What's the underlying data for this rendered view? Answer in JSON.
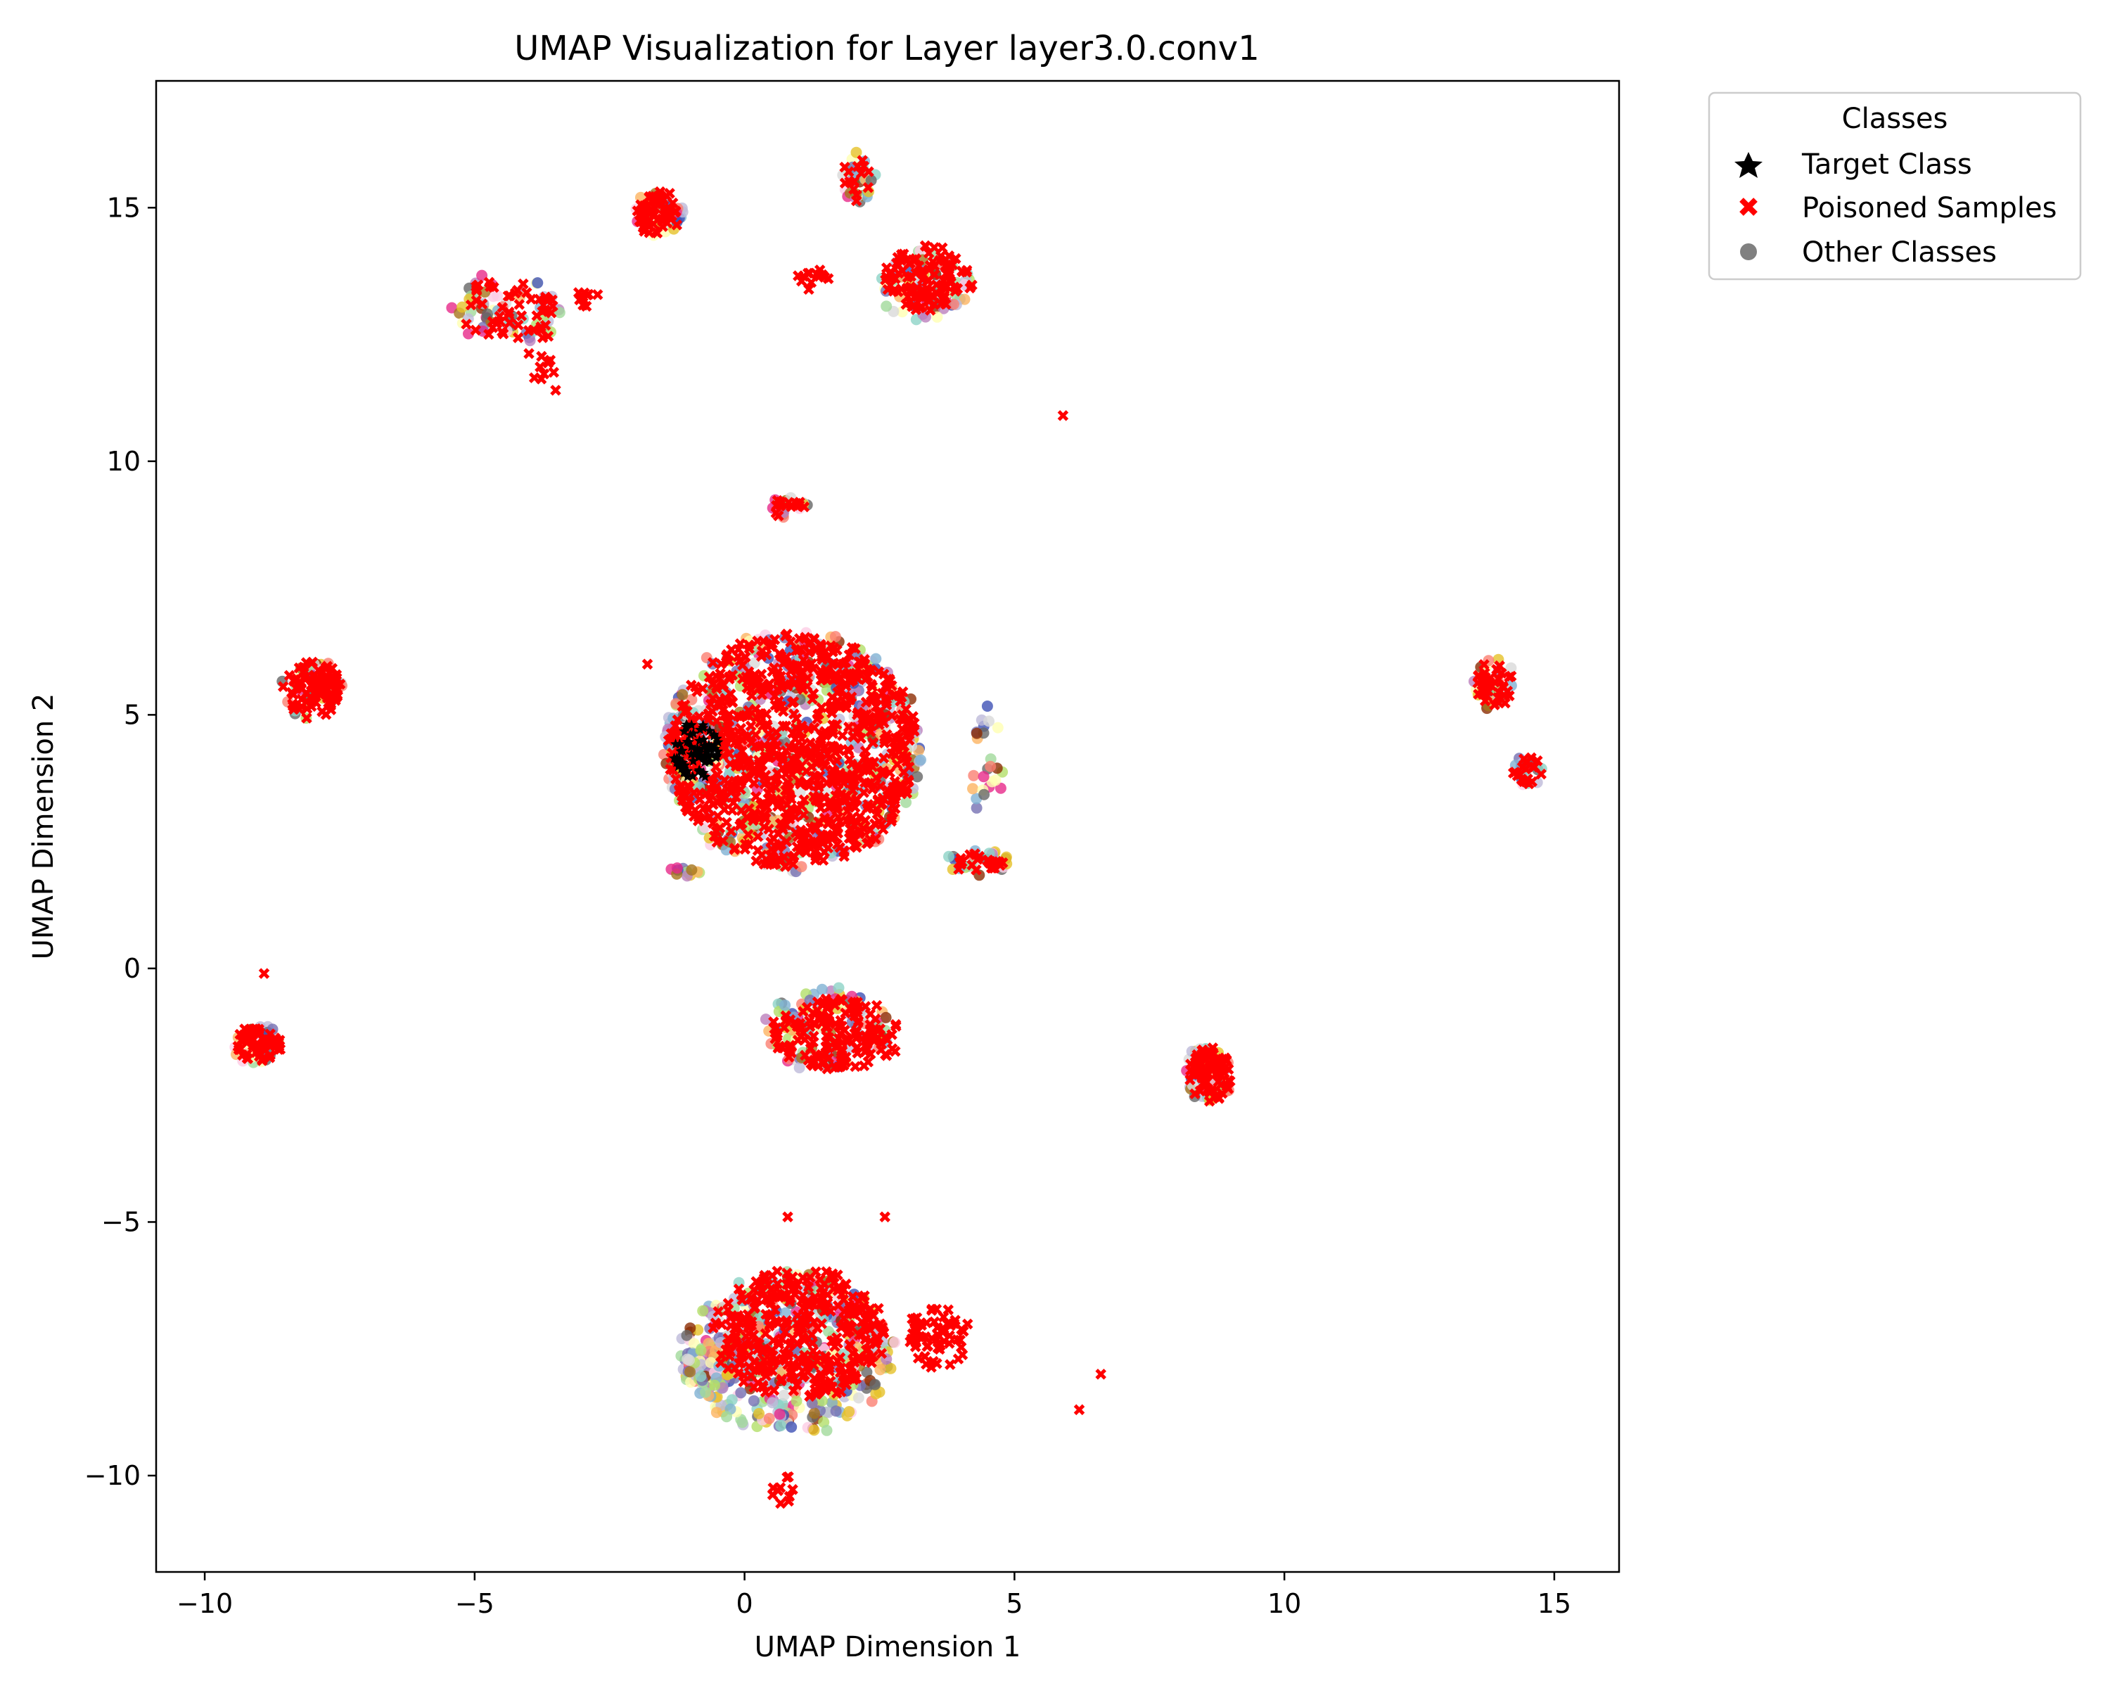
{
  "chart_data": {
    "type": "scatter",
    "title": "UMAP Visualization for Layer layer3.0.conv1",
    "xlabel": "UMAP Dimension 1",
    "ylabel": "UMAP Dimension 2",
    "xlim": [
      -10.9,
      16.2
    ],
    "ylim": [
      -11.9,
      17.5
    ],
    "x_ticks": [
      -10,
      -5,
      0,
      5,
      10,
      15
    ],
    "y_ticks": [
      -10,
      -5,
      0,
      5,
      10,
      15
    ],
    "grid": false,
    "legend": {
      "title": "Classes",
      "placement": "outside-top-right",
      "entries": [
        {
          "label": "Target Class",
          "marker": "star",
          "color": "#000000"
        },
        {
          "label": "Poisoned Samples",
          "marker": "x",
          "color": "#ff0000"
        },
        {
          "label": "Other Classes",
          "marker": "circle",
          "color": "#808080"
        }
      ]
    },
    "other_class_colors": [
      "#8dd3c7",
      "#ffffb3",
      "#bebada",
      "#fb8072",
      "#80b1d3",
      "#fdb462",
      "#b3de69",
      "#fccde5",
      "#d9d9d9",
      "#bc80bd",
      "#a6761d",
      "#e7298a",
      "#7570b3",
      "#3f51b5",
      "#666666",
      "#8c2d04",
      "#e6c229",
      "#a1d99b"
    ],
    "series": [
      {
        "name": "Other Classes",
        "clusters": [
          {
            "cx": 0.9,
            "cy": 4.3,
            "rx": 2.4,
            "ry": 2.4,
            "n": 560
          },
          {
            "cx": -4.4,
            "cy": 13.0,
            "rx": 1.0,
            "ry": 0.7,
            "n": 60
          },
          {
            "cx": -1.6,
            "cy": 14.9,
            "rx": 0.45,
            "ry": 0.45,
            "n": 40
          },
          {
            "cx": 2.1,
            "cy": 15.6,
            "rx": 0.3,
            "ry": 0.6,
            "n": 30
          },
          {
            "cx": 3.3,
            "cy": 13.5,
            "rx": 0.9,
            "ry": 0.7,
            "n": 60
          },
          {
            "cx": -8.0,
            "cy": 5.5,
            "rx": 0.6,
            "ry": 0.6,
            "n": 45
          },
          {
            "cx": -9.0,
            "cy": -1.5,
            "rx": 0.5,
            "ry": 0.4,
            "n": 35
          },
          {
            "cx": 8.6,
            "cy": -2.1,
            "rx": 0.45,
            "ry": 0.6,
            "n": 50
          },
          {
            "cx": 13.9,
            "cy": 5.6,
            "rx": 0.4,
            "ry": 0.5,
            "n": 30
          },
          {
            "cx": 14.5,
            "cy": 3.9,
            "rx": 0.3,
            "ry": 0.3,
            "n": 20
          },
          {
            "cx": 1.5,
            "cy": -1.2,
            "rx": 1.2,
            "ry": 0.8,
            "n": 100
          },
          {
            "cx": 0.8,
            "cy": -7.6,
            "rx": 2.0,
            "ry": 1.6,
            "n": 400
          },
          {
            "cx": -0.6,
            "cy": -7.9,
            "rx": 0.5,
            "ry": 0.55,
            "n": 70
          },
          {
            "cx": 0.8,
            "cy": 9.1,
            "rx": 0.35,
            "ry": 0.25,
            "n": 15
          },
          {
            "cx": 4.3,
            "cy": 2.1,
            "rx": 0.6,
            "ry": 0.25,
            "n": 30
          },
          {
            "cx": 4.5,
            "cy": 4.0,
            "rx": 0.3,
            "ry": 1.2,
            "n": 25
          },
          {
            "cx": -1.1,
            "cy": 1.9,
            "rx": 0.3,
            "ry": 0.1,
            "n": 12
          }
        ]
      },
      {
        "name": "Poisoned Samples",
        "clusters": [
          {
            "cx": 0.9,
            "cy": 4.3,
            "rx": 2.3,
            "ry": 2.3,
            "n": 900
          },
          {
            "cx": -4.4,
            "cy": 13.0,
            "rx": 0.9,
            "ry": 0.6,
            "n": 50
          },
          {
            "cx": -3.7,
            "cy": 12.0,
            "rx": 0.3,
            "ry": 0.5,
            "n": 12
          },
          {
            "cx": -1.6,
            "cy": 14.9,
            "rx": 0.4,
            "ry": 0.45,
            "n": 60
          },
          {
            "cx": -2.9,
            "cy": 13.2,
            "rx": 0.25,
            "ry": 0.15,
            "n": 10
          },
          {
            "cx": 2.1,
            "cy": 15.6,
            "rx": 0.25,
            "ry": 0.5,
            "n": 14
          },
          {
            "cx": 3.4,
            "cy": 13.6,
            "rx": 0.8,
            "ry": 0.65,
            "n": 110
          },
          {
            "cx": 1.3,
            "cy": 13.6,
            "rx": 0.3,
            "ry": 0.2,
            "n": 14
          },
          {
            "cx": -8.0,
            "cy": 5.5,
            "rx": 0.55,
            "ry": 0.55,
            "n": 90
          },
          {
            "cx": -9.0,
            "cy": -1.5,
            "rx": 0.45,
            "ry": 0.35,
            "n": 60
          },
          {
            "cx": 8.6,
            "cy": -2.1,
            "rx": 0.4,
            "ry": 0.55,
            "n": 80
          },
          {
            "cx": 13.9,
            "cy": 5.6,
            "rx": 0.35,
            "ry": 0.45,
            "n": 40
          },
          {
            "cx": 14.5,
            "cy": 3.9,
            "rx": 0.25,
            "ry": 0.3,
            "n": 20
          },
          {
            "cx": 1.7,
            "cy": -1.3,
            "rx": 1.2,
            "ry": 0.7,
            "n": 160
          },
          {
            "cx": 1.0,
            "cy": -7.2,
            "rx": 1.6,
            "ry": 1.3,
            "n": 360
          },
          {
            "cx": 3.6,
            "cy": -7.3,
            "rx": 0.6,
            "ry": 0.6,
            "n": 60
          },
          {
            "cx": 0.8,
            "cy": 9.1,
            "rx": 0.3,
            "ry": 0.2,
            "n": 14
          },
          {
            "cx": 4.3,
            "cy": 2.1,
            "rx": 0.6,
            "ry": 0.15,
            "n": 24
          },
          {
            "cx": 0.7,
            "cy": -10.3,
            "rx": 0.2,
            "ry": 0.3,
            "n": 10
          }
        ],
        "points": [
          [
            5.9,
            10.9
          ],
          [
            -8.9,
            -0.1
          ],
          [
            6.2,
            -8.7
          ],
          [
            6.6,
            -8.0
          ],
          [
            -3.5,
            11.4
          ],
          [
            -1.8,
            6.0
          ],
          [
            2.6,
            -4.9
          ],
          [
            0.8,
            -4.9
          ]
        ]
      },
      {
        "name": "Target Class",
        "clusters": [
          {
            "cx": -0.9,
            "cy": 4.3,
            "rx": 0.45,
            "ry": 0.55,
            "n": 75
          }
        ]
      }
    ]
  }
}
